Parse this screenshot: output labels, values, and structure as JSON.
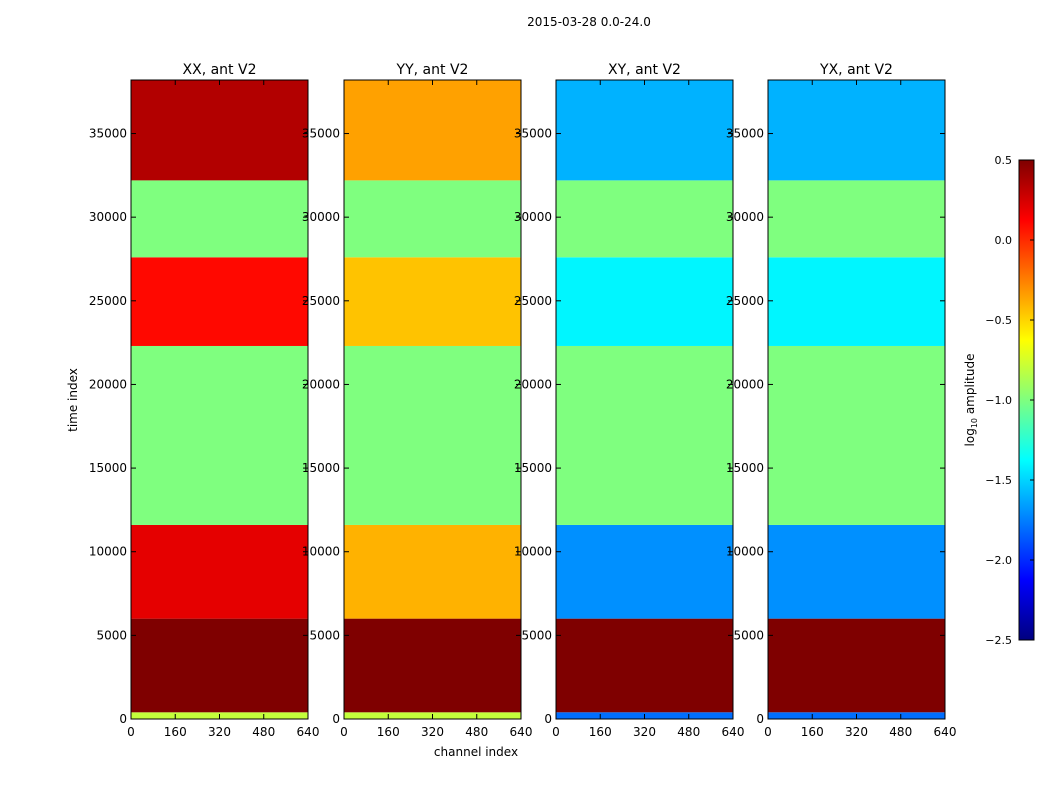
{
  "figure_title": "2015-03-28 0.0-24.0",
  "shared": {
    "ylabel": "time index",
    "xlabel": "channel index",
    "x_ticks": [
      0,
      160,
      320,
      480,
      640
    ],
    "y_ticks": [
      0,
      5000,
      10000,
      15000,
      20000,
      25000,
      30000,
      35000
    ]
  },
  "colorbar": {
    "label": "log10 amplitude",
    "label_base": "log",
    "label_sub": "10",
    "label_rest": " amplitude",
    "ticks": [
      "0.5",
      "0.0",
      "−0.5",
      "−1.0",
      "−1.5",
      "−2.0",
      "−2.5"
    ],
    "stops": [
      "#00007f",
      "#0000ff",
      "#007fff",
      "#00ffff",
      "#7fff7f",
      "#ffff00",
      "#ff7f00",
      "#ff0000",
      "#7f0000"
    ]
  },
  "chart_data": [
    {
      "type": "heatmap",
      "title": "XX, ant V2",
      "xlim": [
        0,
        640
      ],
      "ylim": [
        0,
        38200
      ],
      "zlim": [
        -2.5,
        0.5
      ],
      "bands": [
        {
          "y": [
            0,
            400
          ],
          "value": -0.8
        },
        {
          "y": [
            400,
            6000
          ],
          "value": 0.5
        },
        {
          "y": [
            6000,
            11600
          ],
          "value": 0.2
        },
        {
          "y": [
            11600,
            22300
          ],
          "value": -1.0
        },
        {
          "y": [
            22300,
            27600
          ],
          "value": 0.1
        },
        {
          "y": [
            27600,
            32200
          ],
          "value": -1.0
        },
        {
          "y": [
            32200,
            38200
          ],
          "value": 0.35
        }
      ]
    },
    {
      "type": "heatmap",
      "title": "YY, ant V2",
      "xlim": [
        0,
        640
      ],
      "ylim": [
        0,
        38200
      ],
      "zlim": [
        -2.5,
        0.5
      ],
      "bands": [
        {
          "y": [
            0,
            400
          ],
          "value": -0.8
        },
        {
          "y": [
            400,
            6000
          ],
          "value": 0.5
        },
        {
          "y": [
            6000,
            11600
          ],
          "value": -0.4
        },
        {
          "y": [
            11600,
            22300
          ],
          "value": -1.0
        },
        {
          "y": [
            22300,
            27600
          ],
          "value": -0.45
        },
        {
          "y": [
            27600,
            32200
          ],
          "value": -1.0
        },
        {
          "y": [
            32200,
            38200
          ],
          "value": -0.35
        }
      ]
    },
    {
      "type": "heatmap",
      "title": "XY, ant V2",
      "xlim": [
        0,
        640
      ],
      "ylim": [
        0,
        38200
      ],
      "zlim": [
        -2.5,
        0.5
      ],
      "bands": [
        {
          "y": [
            0,
            400
          ],
          "value": -1.8
        },
        {
          "y": [
            400,
            6000
          ],
          "value": 0.5
        },
        {
          "y": [
            6000,
            11600
          ],
          "value": -1.7
        },
        {
          "y": [
            11600,
            22300
          ],
          "value": -1.0
        },
        {
          "y": [
            22300,
            27600
          ],
          "value": -1.4
        },
        {
          "y": [
            27600,
            32200
          ],
          "value": -1.0
        },
        {
          "y": [
            32200,
            38200
          ],
          "value": -1.6
        }
      ]
    },
    {
      "type": "heatmap",
      "title": "YX, ant V2",
      "xlim": [
        0,
        640
      ],
      "ylim": [
        0,
        38200
      ],
      "zlim": [
        -2.5,
        0.5
      ],
      "bands": [
        {
          "y": [
            0,
            400
          ],
          "value": -1.8
        },
        {
          "y": [
            400,
            6000
          ],
          "value": 0.5
        },
        {
          "y": [
            6000,
            11600
          ],
          "value": -1.7
        },
        {
          "y": [
            11600,
            22300
          ],
          "value": -1.0
        },
        {
          "y": [
            22300,
            27600
          ],
          "value": -1.4
        },
        {
          "y": [
            27600,
            32200
          ],
          "value": -1.0
        },
        {
          "y": [
            32200,
            38200
          ],
          "value": -1.6
        }
      ]
    }
  ]
}
